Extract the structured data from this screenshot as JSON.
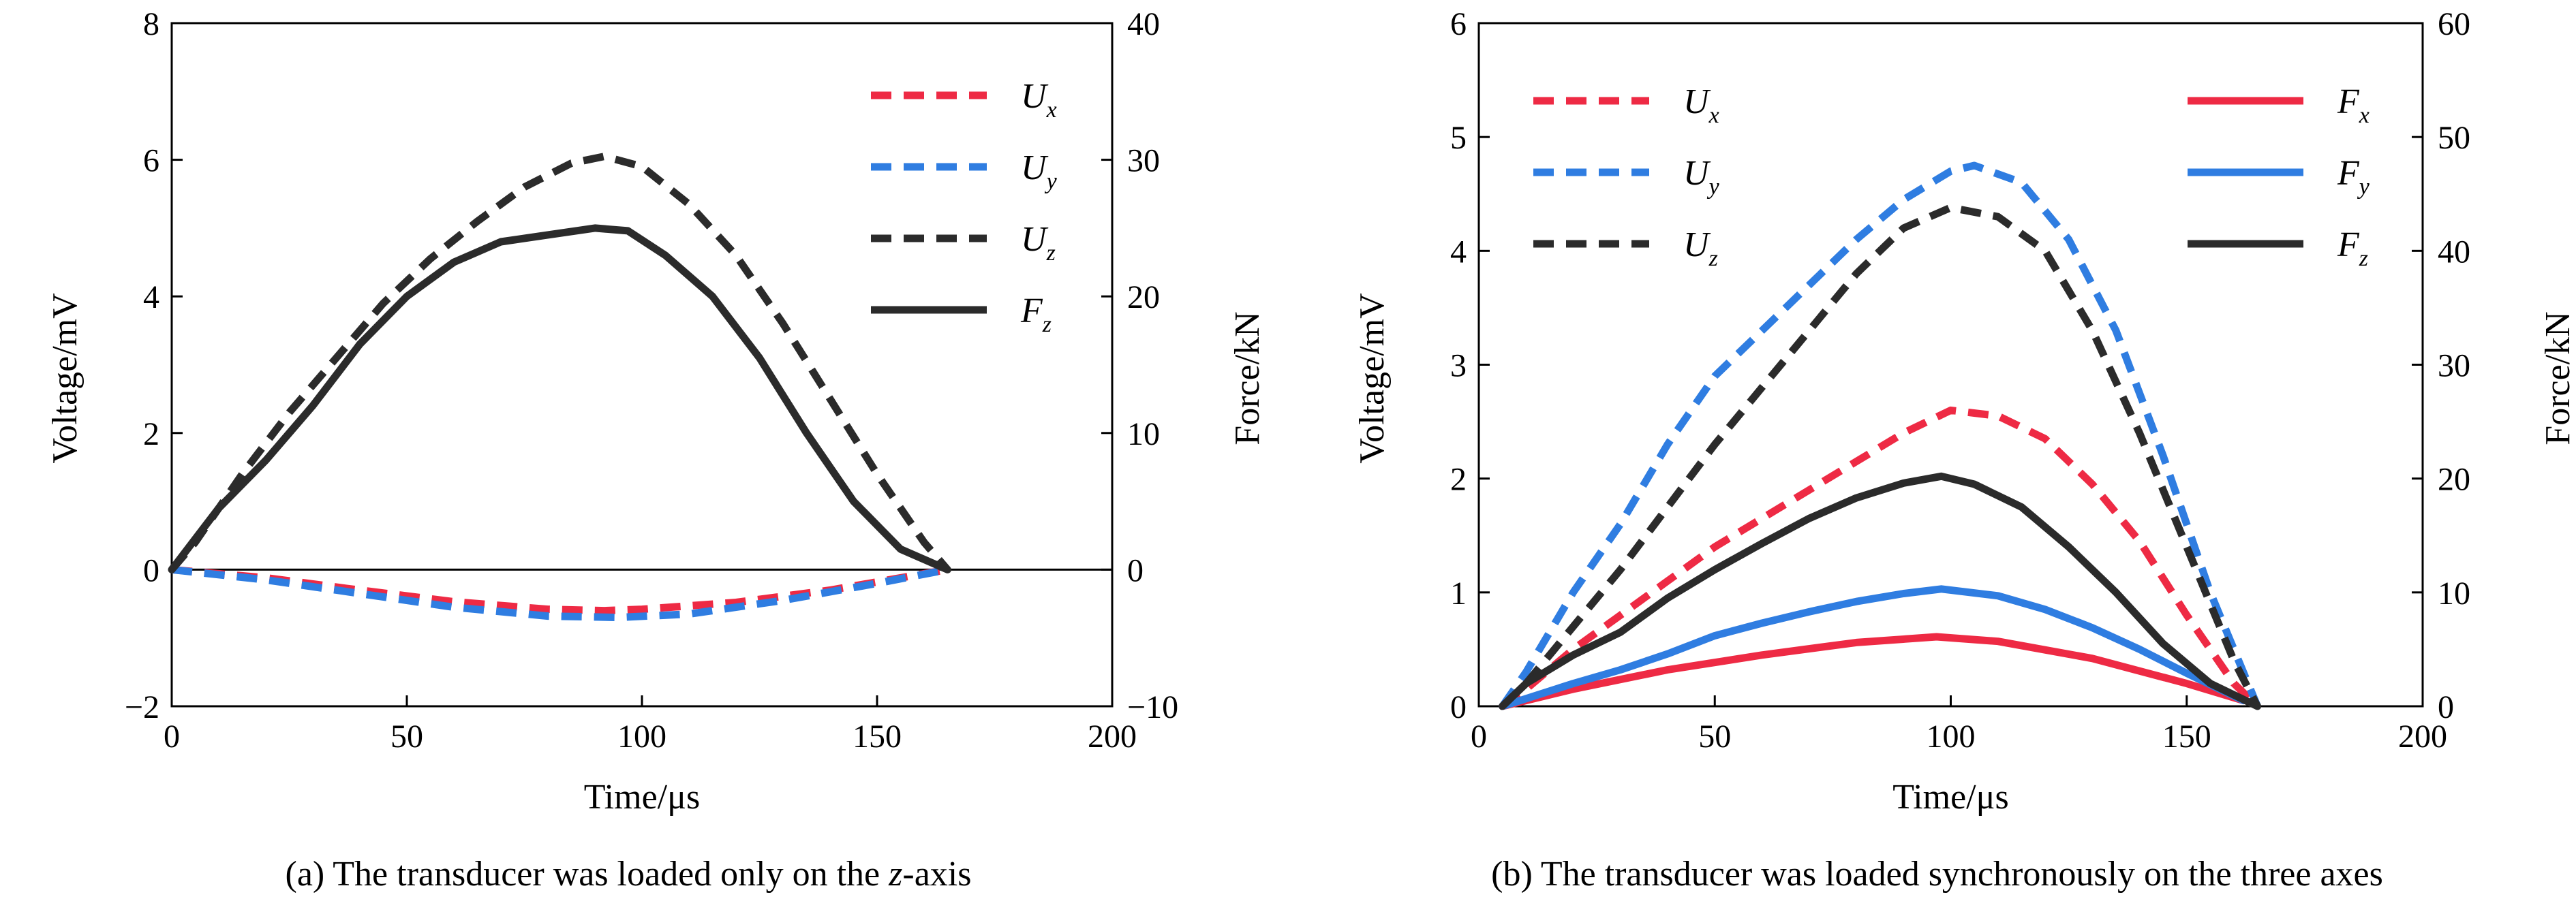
{
  "chart_data": [
    {
      "type": "line",
      "caption": "(a) The transducer was loaded only on the z-axis",
      "caption_parts": {
        "before": "(a) The transducer was loaded only on the ",
        "italic": "z",
        "after": "-axis"
      },
      "xlabel": "Time/μs",
      "ylabel": "Voltage/mV",
      "y2label": "Force/kN",
      "xlim": [
        0,
        200
      ],
      "ylim": [
        -2,
        8
      ],
      "y2lim": [
        -10,
        40
      ],
      "x_ticks": [
        "0",
        "50",
        "100",
        "150",
        "200"
      ],
      "y_ticks": [
        "−2",
        "0",
        "2",
        "4",
        "6",
        "8"
      ],
      "y2_ticks": [
        "−10",
        "0",
        "10",
        "20",
        "30",
        "40"
      ],
      "legend_position": "top-right",
      "grid": false,
      "series": [
        {
          "name": "Ux",
          "letter": "U",
          "sub": "x",
          "color": "#ee2a44",
          "dash": true,
          "axis": "left",
          "x": [
            0,
            20,
            40,
            60,
            80,
            92,
            100,
            120,
            140,
            155,
            165
          ],
          "y": [
            0,
            -0.12,
            -0.3,
            -0.47,
            -0.58,
            -0.6,
            -0.58,
            -0.48,
            -0.3,
            -0.12,
            0
          ]
        },
        {
          "name": "Uy",
          "letter": "U",
          "sub": "y",
          "color": "#2f7de1",
          "dash": true,
          "axis": "left",
          "x": [
            0,
            20,
            40,
            60,
            80,
            95,
            110,
            130,
            150,
            165
          ],
          "y": [
            0,
            -0.15,
            -0.35,
            -0.55,
            -0.68,
            -0.7,
            -0.65,
            -0.45,
            -0.2,
            0
          ]
        },
        {
          "name": "Uz",
          "letter": "U",
          "sub": "z",
          "color": "#2b2b2b",
          "dash": true,
          "axis": "left",
          "x": [
            0,
            5,
            15,
            25,
            35,
            45,
            55,
            65,
            75,
            85,
            92,
            100,
            110,
            120,
            130,
            140,
            150,
            160,
            165
          ],
          "y": [
            0,
            0.4,
            1.4,
            2.3,
            3.1,
            3.9,
            4.55,
            5.1,
            5.6,
            5.95,
            6.05,
            5.9,
            5.35,
            4.6,
            3.6,
            2.5,
            1.4,
            0.4,
            0
          ]
        },
        {
          "name": "Fz",
          "letter": "F",
          "sub": "z",
          "color": "#2b2b2b",
          "dash": false,
          "axis": "right",
          "x": [
            0,
            10,
            20,
            30,
            40,
            50,
            60,
            70,
            80,
            90,
            97,
            105,
            115,
            125,
            135,
            145,
            155,
            165
          ],
          "y": [
            0,
            4.5,
            8,
            12,
            16.5,
            20,
            22.5,
            24,
            24.5,
            25,
            24.8,
            23,
            20,
            15.5,
            10,
            5,
            1.5,
            0
          ]
        }
      ]
    },
    {
      "type": "line",
      "caption": "(b) The transducer was loaded synchronously on the three axes",
      "xlabel": "Time/μs",
      "ylabel": "Voltage/mV",
      "y2label": "Force/kN",
      "xlim": [
        0,
        200
      ],
      "ylim": [
        0,
        6
      ],
      "y2lim": [
        0,
        60
      ],
      "x_ticks": [
        "0",
        "50",
        "100",
        "150",
        "200"
      ],
      "y_ticks": [
        "0",
        "1",
        "2",
        "3",
        "4",
        "5",
        "6"
      ],
      "y2_ticks": [
        "0",
        "10",
        "20",
        "30",
        "40",
        "50",
        "60"
      ],
      "legend_position": "top-left and top-right",
      "grid": false,
      "series": [
        {
          "name": "Ux",
          "letter": "U",
          "sub": "x",
          "color": "#ee2a44",
          "dash": true,
          "axis": "left",
          "x": [
            5,
            10,
            20,
            30,
            40,
            50,
            60,
            70,
            80,
            90,
            100,
            110,
            120,
            130,
            140,
            150,
            160,
            165
          ],
          "y": [
            0,
            0.15,
            0.5,
            0.8,
            1.1,
            1.4,
            1.65,
            1.9,
            2.15,
            2.4,
            2.6,
            2.55,
            2.35,
            1.95,
            1.45,
            0.8,
            0.2,
            0
          ]
        },
        {
          "name": "Uy",
          "letter": "U",
          "sub": "y",
          "color": "#2f7de1",
          "dash": true,
          "axis": "left",
          "x": [
            5,
            10,
            20,
            30,
            40,
            50,
            60,
            70,
            80,
            90,
            100,
            105,
            115,
            125,
            135,
            145,
            155,
            165
          ],
          "y": [
            0,
            0.3,
            1.0,
            1.6,
            2.3,
            2.9,
            3.3,
            3.7,
            4.1,
            4.45,
            4.7,
            4.75,
            4.6,
            4.1,
            3.3,
            2.2,
            1.0,
            0
          ]
        },
        {
          "name": "Uz",
          "letter": "U",
          "sub": "z",
          "color": "#2b2b2b",
          "dash": true,
          "axis": "left",
          "x": [
            5,
            10,
            20,
            30,
            40,
            50,
            60,
            70,
            80,
            90,
            100,
            110,
            120,
            130,
            140,
            150,
            160,
            165
          ],
          "y": [
            0,
            0.2,
            0.7,
            1.2,
            1.75,
            2.3,
            2.8,
            3.3,
            3.8,
            4.2,
            4.38,
            4.3,
            4.0,
            3.3,
            2.4,
            1.4,
            0.4,
            0
          ]
        },
        {
          "name": "Fx",
          "letter": "F",
          "sub": "x",
          "color": "#ee2a44",
          "dash": false,
          "axis": "right",
          "x": [
            5,
            20,
            40,
            60,
            80,
            97,
            110,
            130,
            150,
            162
          ],
          "y": [
            0,
            1.5,
            3.2,
            4.5,
            5.6,
            6.1,
            5.7,
            4.2,
            2.0,
            0.5
          ]
        },
        {
          "name": "Fy",
          "letter": "F",
          "sub": "y",
          "color": "#2f7de1",
          "dash": false,
          "axis": "right",
          "x": [
            5,
            20,
            30,
            40,
            50,
            60,
            70,
            80,
            90,
            98,
            110,
            120,
            130,
            140,
            150,
            162
          ],
          "y": [
            0,
            2.0,
            3.2,
            4.6,
            6.2,
            7.3,
            8.3,
            9.2,
            9.9,
            10.3,
            9.7,
            8.5,
            6.9,
            5.0,
            2.9,
            0.5
          ]
        },
        {
          "name": "Fz",
          "letter": "F",
          "sub": "z",
          "color": "#2b2b2b",
          "dash": false,
          "axis": "right",
          "x": [
            5,
            10,
            20,
            30,
            40,
            50,
            60,
            70,
            80,
            90,
            98,
            105,
            115,
            125,
            135,
            145,
            155,
            165
          ],
          "y": [
            0,
            2.0,
            4.5,
            6.5,
            9.5,
            12.0,
            14.3,
            16.5,
            18.3,
            19.6,
            20.2,
            19.5,
            17.5,
            14.0,
            10.0,
            5.5,
            2.0,
            0
          ]
        }
      ]
    }
  ]
}
